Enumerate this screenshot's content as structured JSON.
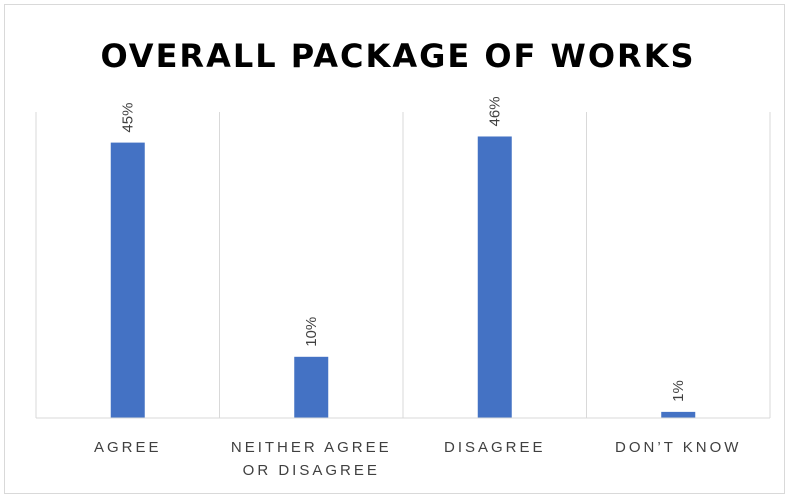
{
  "chart_data": {
    "type": "bar",
    "title": "OVERALL PACKAGE OF WORKS",
    "categories": [
      [
        "AGREE"
      ],
      [
        "NEITHER AGREE",
        "OR DISAGREE"
      ],
      [
        "DISAGREE"
      ],
      [
        "DON’T KNOW"
      ]
    ],
    "values": [
      45,
      10,
      46,
      1
    ],
    "data_labels": [
      "45%",
      "10%",
      "46%",
      "1%"
    ],
    "ylim": [
      0,
      50
    ],
    "value_unit": "%",
    "bar_color": "#4472C4",
    "gridlines": "vertical category separators",
    "legend": "none"
  }
}
